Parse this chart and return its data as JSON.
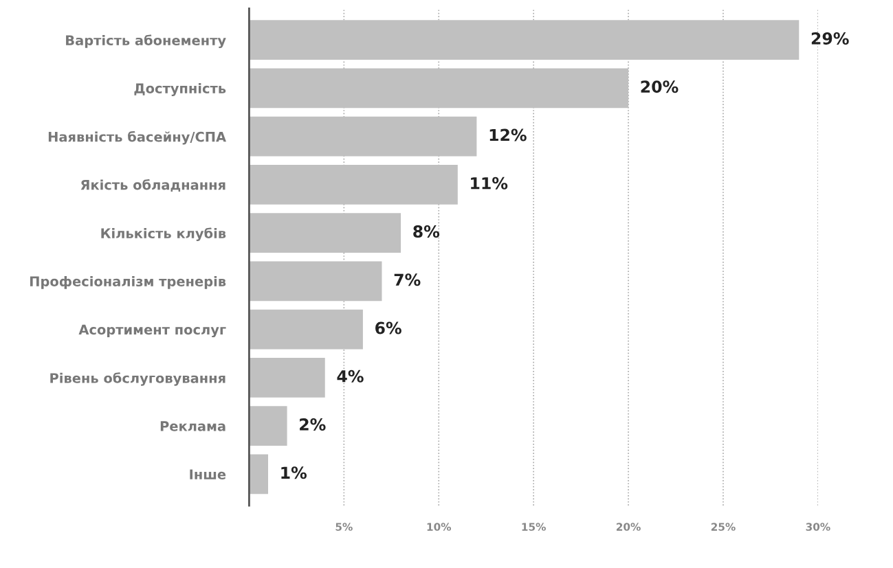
{
  "chart_data": {
    "type": "bar",
    "orientation": "horizontal",
    "categories": [
      "Вартість абонементу",
      "Доступність",
      "Наявність басейну/СПА",
      "Якість обладнання",
      "Кількість клубів",
      "Професіоналізм тренерів",
      "Асортимент послуг",
      "Рівень обслуговування",
      "Реклама",
      "Інше"
    ],
    "values": [
      29,
      20,
      12,
      11,
      8,
      7,
      6,
      4,
      2,
      1
    ],
    "value_labels": [
      "29%",
      "20%",
      "12%",
      "11%",
      "8%",
      "7%",
      "6%",
      "4%",
      "2%",
      "1%"
    ],
    "color": "#c0c0c0",
    "xlim": [
      0,
      30
    ],
    "xticks": [
      {
        "value": 5,
        "label": "5%"
      },
      {
        "value": 10,
        "label": "10%"
      },
      {
        "value": 15,
        "label": "15%"
      },
      {
        "value": 20,
        "label": "20%"
      },
      {
        "value": 25,
        "label": "25%"
      },
      {
        "value": 30,
        "label": "30%"
      }
    ],
    "grid": "x"
  }
}
